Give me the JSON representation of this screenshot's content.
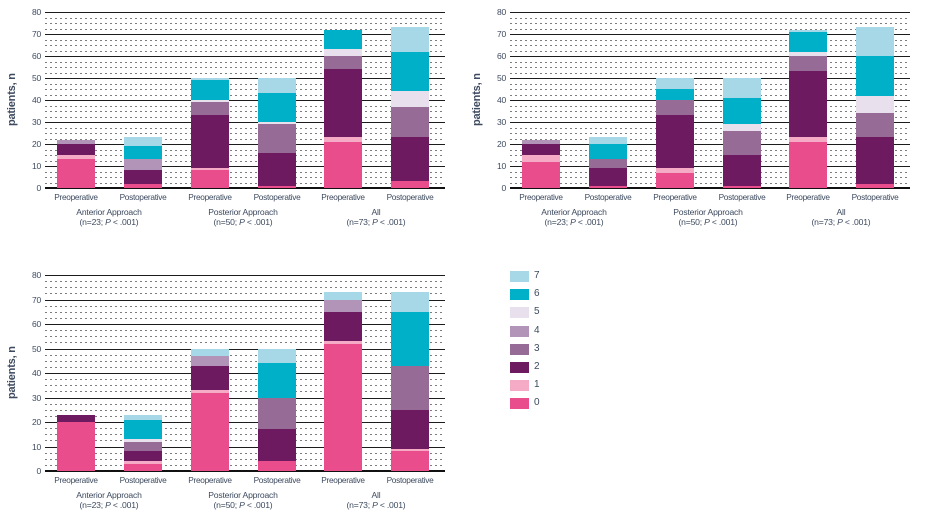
{
  "figure": {
    "y_axis_label": "patients, n",
    "x_tick_labels": [
      "Preoperative",
      "Postoperative"
    ],
    "text_color": "#3d4a5f"
  },
  "colors": {
    "s0": "#ea4d8c",
    "s1": "#f5abc6",
    "s2": "#6e1a60",
    "s3": "#966b96",
    "s4": "#b394b9",
    "s5": "#e8e0ec",
    "s6": "#00b0c8",
    "s7": "#a6d8e8",
    "text": "#3d4a5f",
    "grid_major": "#1c1c1c",
    "grid_minor": "#7d7d7d"
  },
  "legend": {
    "items": [
      {
        "label": "7",
        "color_key": "s7"
      },
      {
        "label": "6",
        "color_key": "s6"
      },
      {
        "label": "5",
        "color_key": "s5"
      },
      {
        "label": "4",
        "color_key": "s4"
      },
      {
        "label": "3",
        "color_key": "s3"
      },
      {
        "label": "2",
        "color_key": "s2"
      },
      {
        "label": "1",
        "color_key": "s1"
      },
      {
        "label": "0",
        "color_key": "s0"
      }
    ]
  },
  "chart_data": [
    {
      "type": "stacked-bar",
      "position": "top-left",
      "ylabel": "patients, n",
      "ylim": [
        0,
        80
      ],
      "ytick_step": 10,
      "grid": "major-solid-minor-dashed",
      "legend_position": "right-of-figure",
      "categories": [
        "Preoperative",
        "Postoperative",
        "Preoperative",
        "Postoperative",
        "Preoperative",
        "Postoperative"
      ],
      "groups": [
        {
          "label": "Anterior Approach",
          "sublabel": "(n=23; P < .001)"
        },
        {
          "label": "Posterior Approach",
          "sublabel": "(n=50; P < .001)"
        },
        {
          "label": "All",
          "sublabel": "(n=73; P < .001)"
        }
      ],
      "bars": [
        {
          "group": 0,
          "category": "Preoperative",
          "segments": [
            [
              "0",
              13
            ],
            [
              "1",
              2
            ],
            [
              "2",
              5
            ],
            [
              "4",
              2
            ]
          ]
        },
        {
          "group": 0,
          "category": "Postoperative",
          "segments": [
            [
              "0",
              2
            ],
            [
              "2",
              6
            ],
            [
              "4",
              5
            ],
            [
              "6",
              6
            ],
            [
              "7",
              4
            ]
          ]
        },
        {
          "group": 1,
          "category": "Preoperative",
          "segments": [
            [
              "0",
              8
            ],
            [
              "1",
              1
            ],
            [
              "2",
              24
            ],
            [
              "3",
              6
            ],
            [
              "5",
              1
            ],
            [
              "6",
              9
            ],
            [
              "7",
              1
            ]
          ]
        },
        {
          "group": 1,
          "category": "Postoperative",
          "segments": [
            [
              "0",
              1
            ],
            [
              "2",
              15
            ],
            [
              "3",
              13
            ],
            [
              "5",
              1
            ],
            [
              "6",
              13
            ],
            [
              "7",
              7
            ]
          ]
        },
        {
          "group": 2,
          "category": "Preoperative",
          "segments": [
            [
              "0",
              21
            ],
            [
              "1",
              2
            ],
            [
              "2",
              31
            ],
            [
              "3",
              6
            ],
            [
              "5",
              3
            ],
            [
              "6",
              9
            ]
          ]
        },
        {
          "group": 2,
          "category": "Postoperative",
          "segments": [
            [
              "0",
              3
            ],
            [
              "2",
              20
            ],
            [
              "3",
              14
            ],
            [
              "5",
              7
            ],
            [
              "6",
              18
            ],
            [
              "7",
              11
            ]
          ]
        }
      ]
    },
    {
      "type": "stacked-bar",
      "position": "top-right",
      "ylabel": "patients, n",
      "ylim": [
        0,
        80
      ],
      "ytick_step": 10,
      "grid": "major-solid-minor-dashed",
      "categories": [
        "Preoperative",
        "Postoperative",
        "Preoperative",
        "Postoperative",
        "Preoperative",
        "Postoperative"
      ],
      "groups": [
        {
          "label": "Anterior Approach",
          "sublabel": "(n=23; P < .001)"
        },
        {
          "label": "Posterior Approach",
          "sublabel": "(n=50; P < .001)"
        },
        {
          "label": "All",
          "sublabel": "(n=73; P < .001)"
        }
      ],
      "bars": [
        {
          "group": 0,
          "category": "Preoperative",
          "segments": [
            [
              "0",
              12
            ],
            [
              "1",
              3
            ],
            [
              "2",
              5
            ],
            [
              "4",
              2
            ]
          ]
        },
        {
          "group": 0,
          "category": "Postoperative",
          "segments": [
            [
              "0",
              1
            ],
            [
              "2",
              8
            ],
            [
              "3",
              4
            ],
            [
              "6",
              7
            ],
            [
              "7",
              3
            ]
          ]
        },
        {
          "group": 1,
          "category": "Preoperative",
          "segments": [
            [
              "0",
              7
            ],
            [
              "1",
              2
            ],
            [
              "2",
              24
            ],
            [
              "3",
              7
            ],
            [
              "6",
              5
            ],
            [
              "7",
              5
            ]
          ]
        },
        {
          "group": 1,
          "category": "Postoperative",
          "segments": [
            [
              "0",
              1
            ],
            [
              "2",
              14
            ],
            [
              "3",
              11
            ],
            [
              "5",
              3
            ],
            [
              "6",
              12
            ],
            [
              "7",
              9
            ]
          ]
        },
        {
          "group": 2,
          "category": "Preoperative",
          "segments": [
            [
              "0",
              21
            ],
            [
              "1",
              2
            ],
            [
              "2",
              30
            ],
            [
              "3",
              7
            ],
            [
              "5",
              2
            ],
            [
              "6",
              9
            ],
            [
              "7",
              1
            ]
          ]
        },
        {
          "group": 2,
          "category": "Postoperative",
          "segments": [
            [
              "0",
              2
            ],
            [
              "2",
              21
            ],
            [
              "3",
              11
            ],
            [
              "5",
              8
            ],
            [
              "6",
              18
            ],
            [
              "7",
              13
            ]
          ]
        }
      ]
    },
    {
      "type": "stacked-bar",
      "position": "bottom-left",
      "ylabel": "patients, n",
      "ylim": [
        0,
        80
      ],
      "ytick_step": 10,
      "grid": "major-solid-minor-dashed",
      "categories": [
        "Preoperative",
        "Postoperative",
        "Preoperative",
        "Postoperative",
        "Preoperative",
        "Postoperative"
      ],
      "groups": [
        {
          "label": "Anterior Approach",
          "sublabel": "(n=23; P < .001)"
        },
        {
          "label": "Posterior Approach",
          "sublabel": "(n=50; P < .001)"
        },
        {
          "label": "All",
          "sublabel": "(n=73; P < .001)"
        }
      ],
      "bars": [
        {
          "group": 0,
          "category": "Preoperative",
          "segments": [
            [
              "0",
              20
            ],
            [
              "2",
              3
            ]
          ]
        },
        {
          "group": 0,
          "category": "Postoperative",
          "segments": [
            [
              "0",
              3
            ],
            [
              "1",
              1
            ],
            [
              "2",
              4
            ],
            [
              "3",
              4
            ],
            [
              "5",
              1
            ],
            [
              "6",
              8
            ],
            [
              "7",
              2
            ]
          ]
        },
        {
          "group": 1,
          "category": "Preoperative",
          "segments": [
            [
              "0",
              32
            ],
            [
              "1",
              1
            ],
            [
              "2",
              10
            ],
            [
              "4",
              4
            ],
            [
              "7",
              3
            ]
          ]
        },
        {
          "group": 1,
          "category": "Postoperative",
          "segments": [
            [
              "0",
              4
            ],
            [
              "2",
              13
            ],
            [
              "3",
              13
            ],
            [
              "6",
              14
            ],
            [
              "7",
              6
            ]
          ]
        },
        {
          "group": 2,
          "category": "Preoperative",
          "segments": [
            [
              "0",
              52
            ],
            [
              "1",
              1
            ],
            [
              "2",
              12
            ],
            [
              "4",
              5
            ],
            [
              "7",
              3
            ]
          ]
        },
        {
          "group": 2,
          "category": "Postoperative",
          "segments": [
            [
              "0",
              8
            ],
            [
              "1",
              1
            ],
            [
              "2",
              16
            ],
            [
              "3",
              18
            ],
            [
              "6",
              22
            ],
            [
              "7",
              8
            ]
          ]
        }
      ]
    }
  ]
}
